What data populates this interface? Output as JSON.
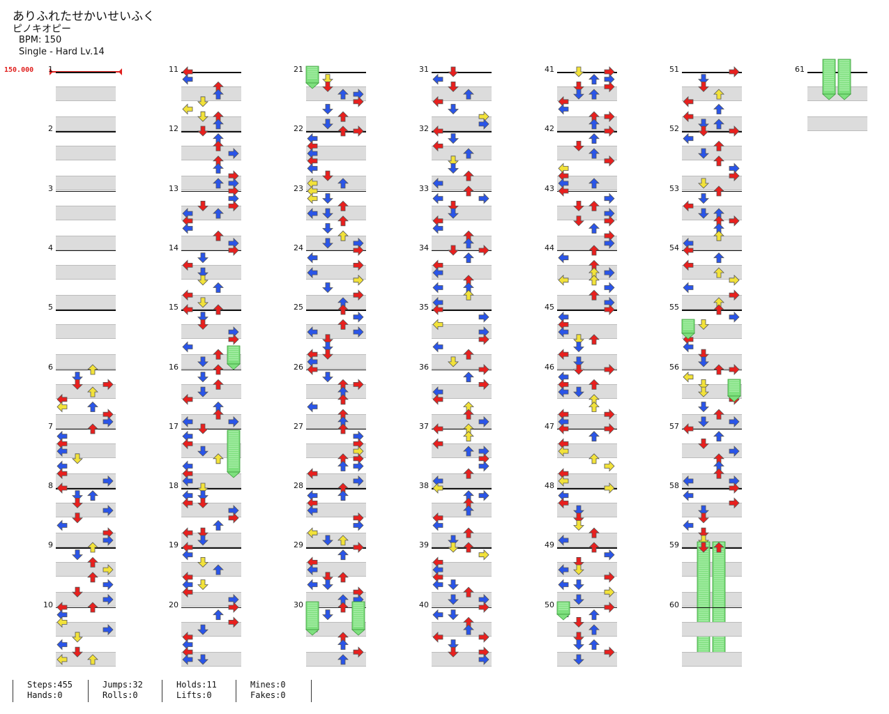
{
  "header": {
    "title": "ありふれたせかいせいふく",
    "artist": "ピノキオピー",
    "bpm": "BPM: 150",
    "difficulty": "Single - Hard  Lv.14",
    "bpm_marker": "150.000"
  },
  "measures": [
    "1",
    "2",
    "3",
    "4",
    "5",
    "6",
    "7",
    "8",
    "9",
    "10",
    "11",
    "12",
    "13",
    "14",
    "15",
    "16",
    "17",
    "18",
    "19",
    "20",
    "21",
    "22",
    "23",
    "24",
    "25",
    "26",
    "27",
    "28",
    "29",
    "30",
    "31",
    "32",
    "33",
    "34",
    "35",
    "36",
    "37",
    "38",
    "39",
    "40",
    "41",
    "42",
    "43",
    "44",
    "45",
    "46",
    "47",
    "48",
    "49",
    "50",
    "51",
    "52",
    "53",
    "54",
    "55",
    "56",
    "57",
    "58",
    "59",
    "60",
    "61"
  ],
  "colors": {
    "quarter": "#e8201e",
    "eighth": "#2a55e8",
    "sixteenth": "#f2e23a",
    "hold": "#7ee07e"
  },
  "stats": {
    "steps": "Steps:455",
    "hands": "Hands:0",
    "jumps": "Jumps:32",
    "rolls": "Rolls:0",
    "holds": "Holds:11",
    "lifts": "Lifts:0",
    "mines": "Mines:0",
    "fakes": "Fakes:0"
  }
}
